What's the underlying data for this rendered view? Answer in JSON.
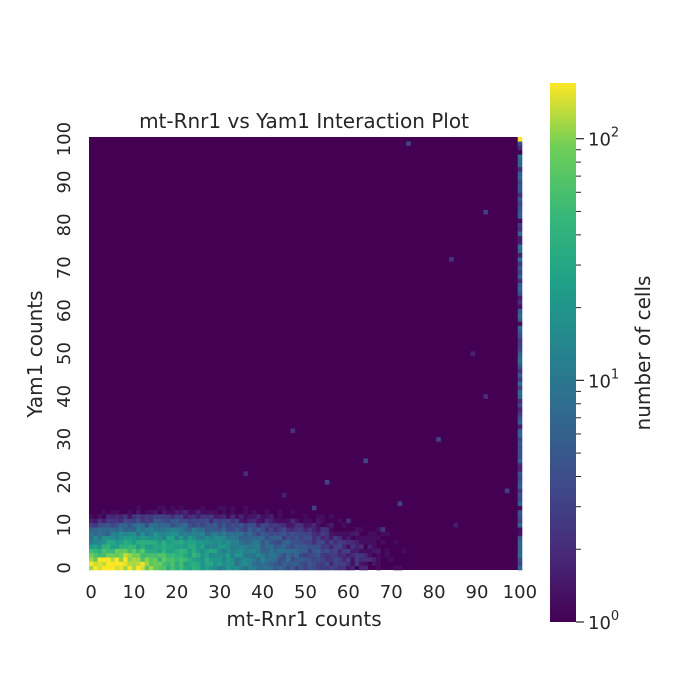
{
  "chart_data": {
    "type": "heatmap",
    "title": "mt-Rnr1 vs Yam1 Interaction Plot",
    "xlabel": "mt-Rnr1 counts",
    "ylabel": "Yam1 counts",
    "xlim": [
      0,
      100
    ],
    "ylim": [
      0,
      100
    ],
    "bins": 100,
    "x_ticks": [
      "0",
      "10",
      "20",
      "30",
      "40",
      "50",
      "60",
      "70",
      "80",
      "90",
      "100"
    ],
    "y_ticks": [
      "0",
      "10",
      "20",
      "30",
      "40",
      "50",
      "60",
      "70",
      "80",
      "90",
      "100"
    ],
    "colorbar": {
      "label": "number of cells",
      "scale": "log",
      "range": [
        1,
        170
      ],
      "colormap": "viridis",
      "ticks": [
        {
          "value": 1,
          "base": "10",
          "exp": "0"
        },
        {
          "value": 10,
          "base": "10",
          "exp": "1"
        },
        {
          "value": 100,
          "base": "10",
          "exp": "2"
        }
      ]
    },
    "background_value": 1,
    "density_model": {
      "description": "cell counts concentrated near origin, peak ~150 at x 0-10, y 0-3",
      "points": [
        {
          "x": 2,
          "y": 0,
          "count": 120
        },
        {
          "x": 5,
          "y": 0,
          "count": 170
        },
        {
          "x": 8,
          "y": 0,
          "count": 160
        },
        {
          "x": 4,
          "y": 1,
          "count": 140
        },
        {
          "x": 7,
          "y": 1,
          "count": 150
        },
        {
          "x": 10,
          "y": 1,
          "count": 110
        },
        {
          "x": 6,
          "y": 2,
          "count": 110
        },
        {
          "x": 12,
          "y": 2,
          "count": 80
        },
        {
          "x": 15,
          "y": 3,
          "count": 40
        },
        {
          "x": 20,
          "y": 3,
          "count": 20
        },
        {
          "x": 25,
          "y": 4,
          "count": 10
        },
        {
          "x": 30,
          "y": 4,
          "count": 5
        },
        {
          "x": 40,
          "y": 5,
          "count": 3
        },
        {
          "x": 50,
          "y": 6,
          "count": 2
        }
      ],
      "edge_column": {
        "x": 100,
        "value_range": [
          1,
          8
        ],
        "top_value": 170
      }
    }
  }
}
